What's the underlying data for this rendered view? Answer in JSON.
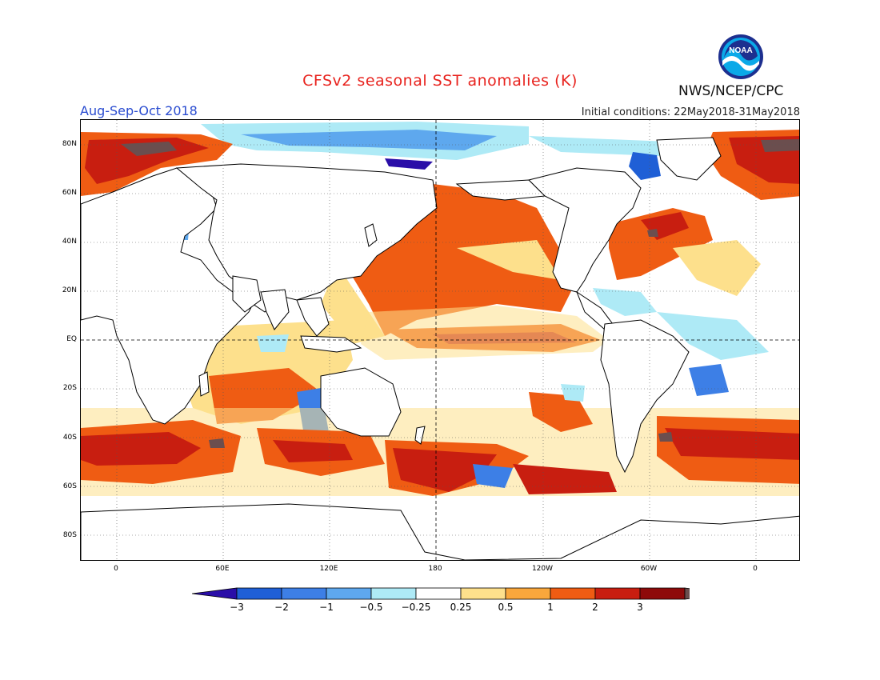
{
  "header": {
    "title": "CFSv2 seasonal SST anomalies (K)",
    "season": "Aug-Sep-Oct 2018",
    "initial_conditions": "Initial conditions: 22May2018-31May2018",
    "agency": "NWS/NCEP/CPC",
    "logo_text": "NOAA"
  },
  "map": {
    "projection": "equirectangular",
    "lon_range": [
      "20W",
      "30E (wrapped)"
    ],
    "lat_labels": [
      "80N",
      "60N",
      "40N",
      "20N",
      "EQ",
      "20S",
      "40S",
      "60S",
      "80S"
    ],
    "lon_labels": [
      "0",
      "60E",
      "120E",
      "180",
      "120W",
      "60W",
      "0"
    ],
    "grid": "dotted",
    "reference_lines": [
      "EQ",
      "180"
    ]
  },
  "colorbar": {
    "tick_labels": [
      "-3",
      "-2",
      "-1",
      "-0.5",
      "-0.25",
      "0.25",
      "0.5",
      "1",
      "2",
      "3"
    ],
    "colors": [
      "#2a0ea8",
      "#1f5fd6",
      "#3d7fe6",
      "#5ea8ee",
      "#aeeaf6",
      "#ffffff",
      "#fde08c",
      "#f9a73c",
      "#ef5c13",
      "#c81e10",
      "#8e0a0a",
      "#6b4e4e"
    ]
  },
  "colors": {
    "title": "#e8231e",
    "season": "#2a4cd0"
  }
}
